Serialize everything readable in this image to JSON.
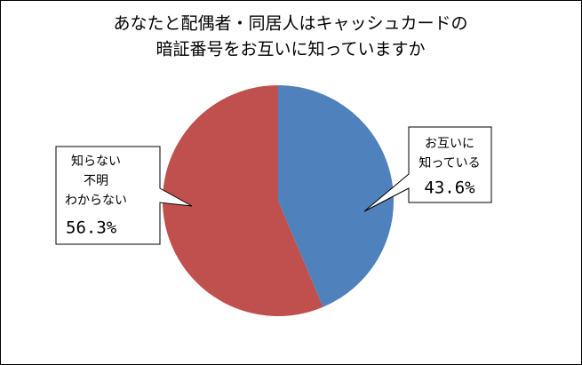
{
  "chart_data": {
    "type": "pie",
    "title": [
      "あなたと配偶者・同居人はキャッシュカードの",
      "暗証番号をお互いに知っていますか"
    ],
    "categories": [
      [
        "お互いに",
        "知っている"
      ],
      [
        "知らない",
        "不明",
        "わからない"
      ]
    ],
    "values": [
      43.6,
      56.3
    ],
    "value_labels": [
      "43.6%",
      "56.3%"
    ],
    "colors": [
      "#4f81bd",
      "#c0504d"
    ]
  }
}
